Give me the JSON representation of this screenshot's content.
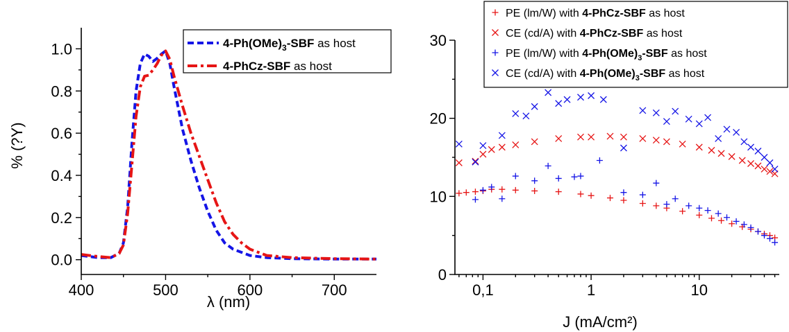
{
  "chart_data": [
    {
      "type": "line",
      "xlabel": "λ (nm)",
      "ylabel": "% (?Y)",
      "xlim": [
        400,
        750
      ],
      "ylim": [
        -0.07,
        1.1
      ],
      "x_ticks": [
        "400",
        "500",
        "600",
        "700"
      ],
      "y_ticks": [
        "0.0",
        "0.2",
        "0.4",
        "0.6",
        "0.8",
        "1.0"
      ],
      "legend_position": "top-right",
      "series": [
        {
          "legend_label": {
            "bold_a": "4-Ph(OMe)",
            "sub": "3",
            "bold_b": "-SBF",
            "plain": " as host"
          },
          "color": "#1515e6",
          "style": "dashed",
          "x": [
            400,
            420,
            435,
            445,
            450,
            455,
            460,
            465,
            470,
            475,
            480,
            485,
            490,
            495,
            500,
            505,
            510,
            520,
            530,
            540,
            550,
            560,
            570,
            580,
            600,
            620,
            650,
            700,
            750
          ],
          "y": [
            0.02,
            0.01,
            0.01,
            0.03,
            0.08,
            0.25,
            0.55,
            0.8,
            0.93,
            0.975,
            0.965,
            0.94,
            0.955,
            0.975,
            0.99,
            0.93,
            0.82,
            0.62,
            0.47,
            0.34,
            0.23,
            0.14,
            0.08,
            0.05,
            0.02,
            0.01,
            0.005,
            0.003,
            0.003
          ]
        },
        {
          "legend_label": {
            "bold_a": "4-PhCz-SBF",
            "sub": "",
            "bold_b": "",
            "plain": " as host"
          },
          "color": "#e61515",
          "style": "dash-dot",
          "x": [
            400,
            420,
            435,
            445,
            450,
            455,
            460,
            465,
            470,
            475,
            480,
            485,
            490,
            495,
            500,
            505,
            510,
            520,
            530,
            540,
            550,
            560,
            570,
            580,
            590,
            600,
            620,
            650,
            700,
            750
          ],
          "y": [
            0.025,
            0.015,
            0.01,
            0.03,
            0.07,
            0.22,
            0.45,
            0.68,
            0.82,
            0.87,
            0.875,
            0.9,
            0.93,
            0.97,
            0.99,
            0.95,
            0.87,
            0.73,
            0.6,
            0.49,
            0.38,
            0.27,
            0.18,
            0.12,
            0.08,
            0.05,
            0.02,
            0.01,
            0.005,
            0.003
          ]
        }
      ]
    },
    {
      "type": "scatter",
      "xlabel": "J (mA/cm²)",
      "ylabel": "",
      "xscale": "log",
      "xlim": [
        0.055,
        55
      ],
      "ylim": [
        0,
        30
      ],
      "x_ticks": [
        "0,1",
        "1",
        "10"
      ],
      "y_ticks": [
        "0",
        "10",
        "20",
        "30"
      ],
      "legend_position": "top-right",
      "series": [
        {
          "legend_label": {
            "plain_a": "PE (lm/W) with ",
            "bold_a": "4-PhCz-SBF",
            "sub": "",
            "bold_b": "",
            "plain_b": " as host"
          },
          "color": "#e61515",
          "marker": "plus",
          "x": [
            0.06,
            0.07,
            0.085,
            0.1,
            0.12,
            0.15,
            0.2,
            0.3,
            0.5,
            0.8,
            1,
            1.5,
            2,
            3,
            4,
            5,
            7,
            10,
            13,
            16,
            20,
            25,
            30,
            35,
            40,
            45,
            50
          ],
          "y": [
            10.4,
            10.5,
            10.6,
            10.7,
            10.9,
            10.9,
            10.8,
            10.7,
            10.6,
            10.3,
            10.1,
            9.8,
            9.5,
            9.1,
            8.8,
            8.5,
            8.1,
            7.6,
            7.2,
            6.9,
            6.5,
            6.1,
            5.8,
            5.5,
            5.2,
            5.0,
            4.7
          ]
        },
        {
          "legend_label": {
            "plain_a": "CE (cd/A) with ",
            "bold_a": "4-PhCz-SBF",
            "sub": "",
            "bold_b": "",
            "plain_b": " as host"
          },
          "color": "#e61515",
          "marker": "cross",
          "x": [
            0.06,
            0.085,
            0.1,
            0.12,
            0.15,
            0.2,
            0.3,
            0.5,
            0.8,
            1,
            1.5,
            2,
            3,
            4,
            5,
            7,
            10,
            13,
            16,
            20,
            25,
            30,
            35,
            40,
            45,
            50
          ],
          "y": [
            14.3,
            14.5,
            15.4,
            16.0,
            16.3,
            16.6,
            17.0,
            17.4,
            17.6,
            17.6,
            17.7,
            17.6,
            17.4,
            17.2,
            17.0,
            16.7,
            16.3,
            15.9,
            15.5,
            15.1,
            14.6,
            14.2,
            13.9,
            13.5,
            13.2,
            12.9
          ]
        },
        {
          "legend_label": {
            "plain_a": "PE (lm/W) with ",
            "bold_a": "4-Ph(OMe)",
            "sub": "3",
            "bold_b": "-SBF",
            "plain_b": " as host"
          },
          "color": "#1515e6",
          "marker": "plus",
          "x": [
            0.085,
            0.1,
            0.12,
            0.15,
            0.2,
            0.3,
            0.4,
            0.5,
            0.7,
            0.8,
            1.2,
            2,
            3,
            4,
            5,
            6,
            8,
            10,
            12,
            15,
            18,
            22,
            26,
            30,
            35,
            40,
            45,
            50
          ],
          "y": [
            9.6,
            10.8,
            11.2,
            9.7,
            12.6,
            12.0,
            13.9,
            12.3,
            12.5,
            12.6,
            14.6,
            10.5,
            10.2,
            11.7,
            9.0,
            9.7,
            8.8,
            8.5,
            8.2,
            7.8,
            7.3,
            6.8,
            6.4,
            6.0,
            5.5,
            5.0,
            4.6,
            4.1
          ]
        },
        {
          "legend_label": {
            "plain_a": "CE (cd/A) with ",
            "bold_a": "4-Ph(OMe)",
            "sub": "3",
            "bold_b": "-SBF",
            "plain_b": " as host"
          },
          "color": "#1515e6",
          "marker": "cross",
          "x": [
            0.06,
            0.085,
            0.1,
            0.15,
            0.2,
            0.25,
            0.3,
            0.4,
            0.5,
            0.6,
            0.8,
            1,
            1.3,
            2,
            3,
            4,
            5,
            6,
            8,
            10,
            12,
            15,
            18,
            22,
            26,
            30,
            35,
            40,
            45,
            50
          ],
          "y": [
            16.7,
            14.4,
            16.5,
            17.8,
            20.6,
            20.3,
            21.5,
            23.3,
            21.9,
            22.4,
            22.7,
            22.9,
            22.4,
            16.2,
            21.0,
            20.7,
            19.6,
            20.9,
            19.9,
            19.3,
            20.1,
            17.4,
            18.6,
            18.2,
            17.0,
            16.3,
            15.8,
            15.0,
            14.3,
            13.5
          ]
        }
      ]
    }
  ]
}
